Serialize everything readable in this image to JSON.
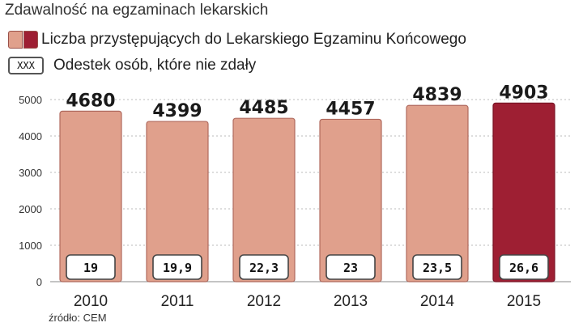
{
  "title": "Zdawalność na egzaminach lekarskich",
  "legend": {
    "bars_label": "Liczba przystępujących do Lekarskiego Egzaminu Końcowego",
    "box_symbol": "XXX",
    "box_label": "Odestek osób, które nie zdały"
  },
  "source": "źródło: CEM",
  "colors": {
    "bar": "#e0a08c",
    "bar_highlight": "#9e1f33",
    "bar_stroke": "#b06a5e"
  },
  "chart_data": {
    "type": "bar",
    "title": "Zdawalność na egzaminach lekarskich",
    "categories": [
      "2010",
      "2011",
      "2012",
      "2013",
      "2014",
      "2015"
    ],
    "series": [
      {
        "name": "Liczba przystępujących do Lekarskiego Egzaminu Końcowego",
        "values": [
          4680,
          4399,
          4485,
          4457,
          4839,
          4903
        ],
        "value_labels": [
          "4680",
          "4399",
          "4485",
          "4457",
          "4839",
          "4903"
        ]
      }
    ],
    "fail_percent_labels": [
      "19",
      "19,9",
      "22,3",
      "23",
      "23,5",
      "26,6"
    ],
    "highlight_category": "2015",
    "ylim": [
      0,
      5000
    ],
    "yticks": [
      0,
      1000,
      2000,
      3000,
      4000,
      5000
    ],
    "grid": "horizontal dashed"
  }
}
